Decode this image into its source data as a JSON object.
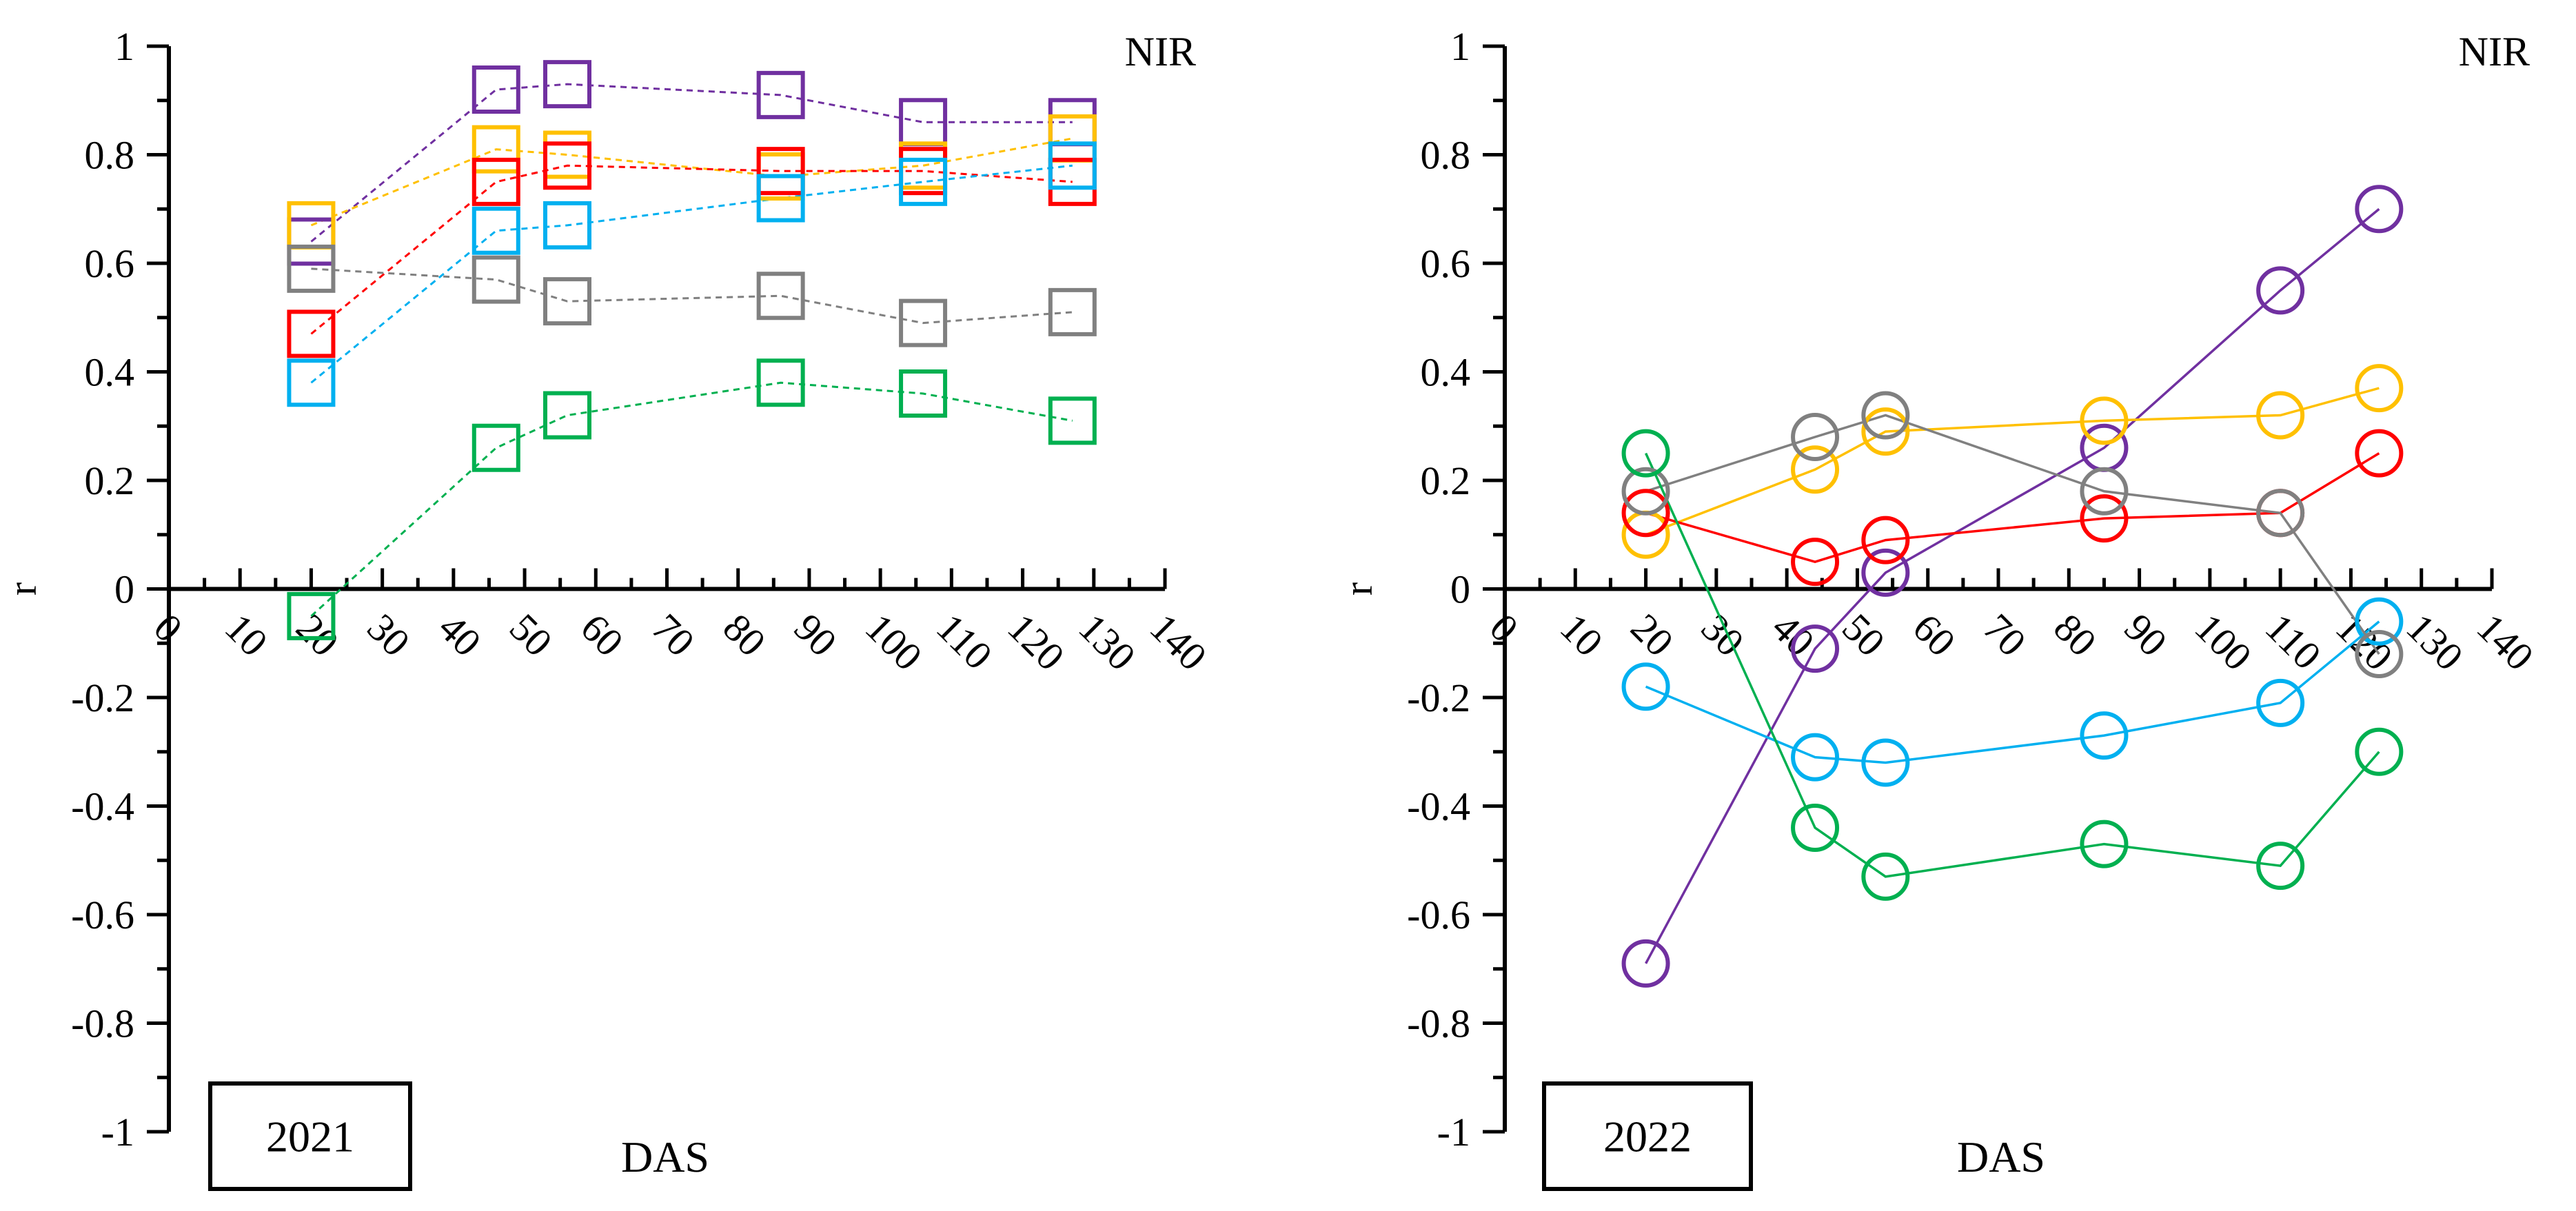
{
  "chart_data": [
    {
      "type": "line",
      "title": "NIR",
      "year_label": "2021",
      "xlabel": "DAS",
      "ylabel": "r",
      "xlim": [
        0,
        140
      ],
      "ylim": [
        -1,
        1
      ],
      "x_ticks": [
        0,
        10,
        20,
        30,
        40,
        50,
        60,
        70,
        80,
        90,
        100,
        110,
        120,
        130,
        140
      ],
      "y_ticks": [
        -1,
        -0.8,
        -0.6,
        -0.4,
        -0.2,
        0,
        0.2,
        0.4,
        0.6,
        0.8,
        1
      ],
      "y_tick_labels": [
        "-1",
        "-0.8",
        "-0.6",
        "-0.4",
        "-0.2",
        "0",
        "0.2",
        "0.4",
        "0.6",
        "0.8",
        "1"
      ],
      "line_style": "dashed",
      "marker": "square",
      "x": [
        20,
        46,
        56,
        86,
        106,
        127
      ],
      "series": [
        {
          "name": "purple",
          "color": "#7030A0",
          "values": [
            0.64,
            0.92,
            0.93,
            0.91,
            0.86,
            0.86
          ]
        },
        {
          "name": "yellow",
          "color": "#FFC000",
          "values": [
            0.67,
            0.81,
            0.8,
            0.76,
            0.78,
            0.83
          ]
        },
        {
          "name": "red",
          "color": "#FF0000",
          "values": [
            0.47,
            0.75,
            0.78,
            0.77,
            0.77,
            0.75
          ]
        },
        {
          "name": "blue",
          "color": "#00B0F0",
          "values": [
            0.38,
            0.66,
            0.67,
            0.72,
            0.75,
            0.78
          ]
        },
        {
          "name": "gray",
          "color": "#808080",
          "values": [
            0.59,
            0.57,
            0.53,
            0.54,
            0.49,
            0.51
          ]
        },
        {
          "name": "green",
          "color": "#00B050",
          "values": [
            -0.05,
            0.26,
            0.32,
            0.38,
            0.36,
            0.31
          ]
        }
      ]
    },
    {
      "type": "line",
      "title": "NIR",
      "year_label": "2022",
      "xlabel": "DAS",
      "ylabel": "r",
      "xlim": [
        0,
        140
      ],
      "ylim": [
        -1,
        1
      ],
      "x_ticks": [
        0,
        10,
        20,
        30,
        40,
        50,
        60,
        70,
        80,
        90,
        100,
        110,
        120,
        130,
        140
      ],
      "y_ticks": [
        -1,
        -0.8,
        -0.6,
        -0.4,
        -0.2,
        0,
        0.2,
        0.4,
        0.6,
        0.8,
        1
      ],
      "y_tick_labels": [
        "-1",
        "-0.8",
        "-0.6",
        "-0.4",
        "-0.2",
        "0",
        "0.2",
        "0.4",
        "0.6",
        "0.8",
        "1"
      ],
      "line_style": "solid",
      "marker": "circle",
      "x": [
        20,
        44,
        54,
        85,
        110,
        124
      ],
      "series": [
        {
          "name": "purple",
          "color": "#7030A0",
          "values": [
            -0.69,
            -0.11,
            0.03,
            0.26,
            0.55,
            0.7
          ]
        },
        {
          "name": "yellow",
          "color": "#FFC000",
          "values": [
            0.1,
            0.22,
            0.29,
            0.31,
            0.32,
            0.37
          ]
        },
        {
          "name": "red",
          "color": "#FF0000",
          "values": [
            0.14,
            0.05,
            0.09,
            0.13,
            0.14,
            0.25
          ]
        },
        {
          "name": "blue",
          "color": "#00B0F0",
          "values": [
            -0.18,
            -0.31,
            -0.32,
            -0.27,
            -0.21,
            -0.06
          ]
        },
        {
          "name": "gray",
          "color": "#808080",
          "values": [
            0.18,
            0.28,
            0.32,
            0.18,
            0.14,
            -0.12
          ]
        },
        {
          "name": "green",
          "color": "#00B050",
          "values": [
            0.25,
            -0.44,
            -0.53,
            -0.47,
            -0.51,
            -0.3
          ]
        }
      ]
    }
  ]
}
